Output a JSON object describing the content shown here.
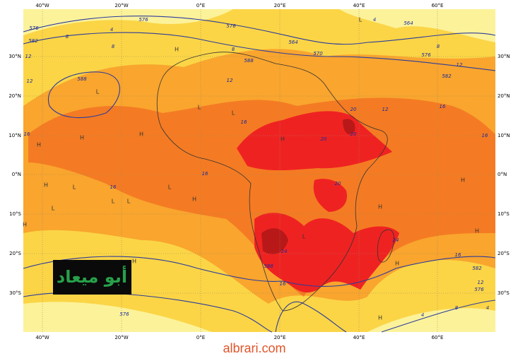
{
  "map": {
    "longitude_labels": [
      "40°W",
      "20°W",
      "0°E",
      "20°E",
      "40°E",
      "60°E"
    ],
    "latitude_labels": [
      "30°N",
      "20°N",
      "10°N",
      "0°N",
      "10°S",
      "20°S",
      "30°S"
    ],
    "contour_labels": [
      576,
      582,
      8,
      4,
      576,
      576,
      8,
      588,
      564,
      570,
      4,
      564,
      576,
      8,
      582,
      12,
      12,
      12,
      588,
      8,
      12,
      16,
      12,
      16,
      20,
      20,
      20,
      16,
      16,
      16,
      16,
      20,
      24,
      24,
      16,
      582,
      588,
      16,
      12,
      576,
      4,
      576,
      8,
      4
    ],
    "pressure_markers": [
      "L",
      "L",
      "L",
      "L",
      "L",
      "L",
      "L",
      "L",
      "L",
      "L",
      "H",
      "H",
      "H",
      "H",
      "H",
      "H",
      "H",
      "H",
      "H",
      "H",
      "H",
      "H",
      "H",
      "H"
    ],
    "watermark": "أبو ميعاد"
  },
  "footer": {
    "site": "albrari.com"
  }
}
